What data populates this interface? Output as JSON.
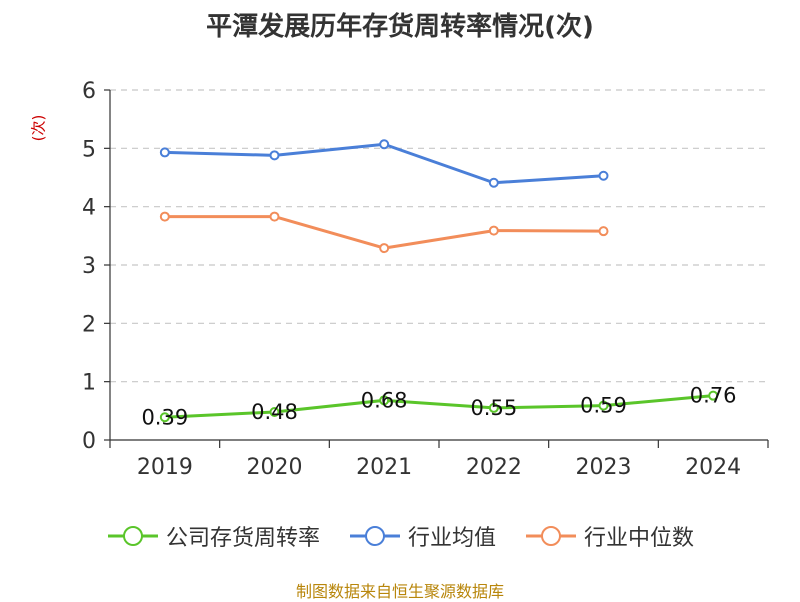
{
  "chart_data": {
    "type": "line",
    "title": "平潭发展历年存货周转率情况(次)",
    "ylabel": "(次)",
    "ylim": [
      0,
      6
    ],
    "yticks": [
      0,
      1,
      2,
      3,
      4,
      5,
      6
    ],
    "categories": [
      "2019",
      "2020",
      "2021",
      "2022",
      "2023",
      "2024"
    ],
    "grid": true,
    "legend_position": "bottom",
    "series": [
      {
        "name": "公司存货周转率",
        "color": "#5ac52a",
        "values": [
          0.39,
          0.48,
          0.68,
          0.55,
          0.59,
          0.76
        ],
        "labels": [
          "0.39",
          "0.48",
          "0.68",
          "0.55",
          "0.59",
          "0.76"
        ]
      },
      {
        "name": "行业均值",
        "color": "#4a7fd8",
        "values": [
          4.93,
          4.88,
          5.07,
          4.41,
          4.53,
          null
        ]
      },
      {
        "name": "行业中位数",
        "color": "#f28d5a",
        "values": [
          3.83,
          3.83,
          3.29,
          3.59,
          3.58,
          null
        ]
      }
    ]
  },
  "source": "制图数据来自恒生聚源数据库"
}
